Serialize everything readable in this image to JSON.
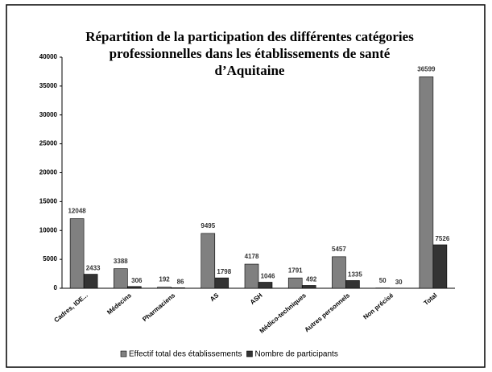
{
  "chart_data": {
    "type": "bar",
    "title": [
      "Répartition de la participation des différentes catégories",
      "professionnelles dans les établissements de santé",
      "d’Aquitaine"
    ],
    "categories": [
      "Cadres, IDE...",
      "Médecins",
      "Pharmaciens",
      "AS",
      "ASH",
      "Médico-techniques",
      "Autres personnels",
      "Non précisé",
      "Total"
    ],
    "series": [
      {
        "name": "Effectif total des établissements",
        "color": "#808080",
        "values": [
          12048,
          3388,
          192,
          9495,
          4178,
          1791,
          5457,
          50,
          36599
        ]
      },
      {
        "name": "Nombre de participants",
        "color": "#333333",
        "values": [
          2433,
          306,
          86,
          1798,
          1046,
          492,
          1335,
          30,
          7526
        ]
      }
    ],
    "ylim": [
      0,
      40000
    ],
    "yticks": [
      0,
      5000,
      10000,
      15000,
      20000,
      25000,
      30000,
      35000,
      40000
    ],
    "grid": false,
    "legend": "bottom"
  }
}
